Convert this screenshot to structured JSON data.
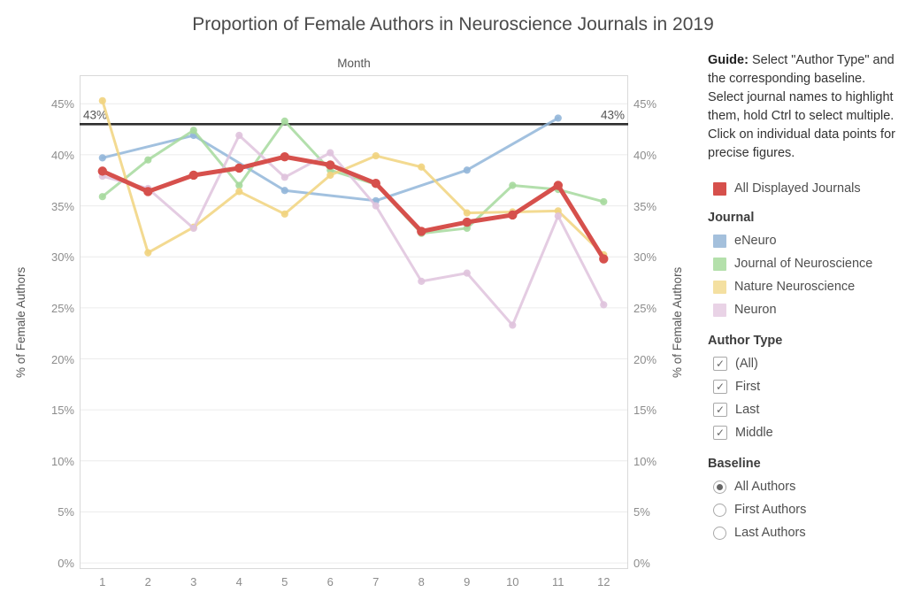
{
  "title": "Proportion of Female Authors in Neuroscience Journals in 2019",
  "chart_data": {
    "type": "line",
    "title": "Proportion of Female Authors in Neuroscience Journals in 2019",
    "x_axis_label": "Month",
    "y_axis_label": "% of Female Authors",
    "x": [
      1,
      2,
      3,
      4,
      5,
      6,
      7,
      8,
      9,
      10,
      11,
      12
    ],
    "y_ticks": [
      {
        "value": 0,
        "label": "0%"
      },
      {
        "value": 5,
        "label": "5%"
      },
      {
        "value": 10,
        "label": "10%"
      },
      {
        "value": 15,
        "label": "15%"
      },
      {
        "value": 20,
        "label": "20%"
      },
      {
        "value": 25,
        "label": "25%"
      },
      {
        "value": 30,
        "label": "30%"
      },
      {
        "value": 35,
        "label": "35%"
      },
      {
        "value": 40,
        "label": "40%"
      },
      {
        "value": 45,
        "label": "45%"
      }
    ],
    "ylim": [
      -0.6,
      47.8
    ],
    "grid": "horizontal",
    "reference_line": {
      "value": 43,
      "label": "43%",
      "color": "#2e2e2e"
    },
    "series": [
      {
        "name": "eNeuro",
        "color": "#92b6d9",
        "width": 3,
        "values": [
          39.7,
          null,
          41.9,
          null,
          36.5,
          null,
          35.5,
          null,
          38.5,
          null,
          43.6,
          null
        ]
      },
      {
        "name": "Journal of Neuroscience",
        "color": "#a6d99d",
        "width": 3,
        "values": [
          35.9,
          39.5,
          42.4,
          37.0,
          43.3,
          38.5,
          37.1,
          32.3,
          32.8,
          37.0,
          36.6,
          35.4
        ]
      },
      {
        "name": "Nature Neuroscience",
        "color": "#f1d37e",
        "width": 3,
        "values": [
          45.3,
          30.4,
          32.9,
          36.4,
          34.2,
          38.0,
          39.9,
          38.8,
          34.3,
          34.4,
          34.5,
          30.2
        ]
      },
      {
        "name": "Neuron",
        "color": "#dfc3dd",
        "width": 3,
        "values": [
          37.9,
          36.7,
          32.8,
          41.9,
          37.8,
          40.2,
          35.0,
          27.6,
          28.4,
          23.3,
          34.0,
          25.3
        ]
      },
      {
        "name": "All Displayed Journals",
        "color": "#d6504c",
        "width": 5,
        "values": [
          38.4,
          36.4,
          38.0,
          38.7,
          39.8,
          39.0,
          37.2,
          32.5,
          33.4,
          34.1,
          37.0,
          29.8
        ]
      }
    ],
    "legend_position": "right"
  },
  "guide": {
    "label": "Guide:",
    "text": "Select \"Author Type\" and the corresponding baseline. Select journal names to highlight them, hold Ctrl to select multiple. Click on individual data points for precise figures."
  },
  "legend_all": {
    "label": "All Displayed Journals",
    "color": "#d6504c"
  },
  "journal_legend": {
    "title": "Journal",
    "items": [
      {
        "label": "eNeuro",
        "color": "#a4c0dc"
      },
      {
        "label": "Journal of Neuroscience",
        "color": "#b4e0ab"
      },
      {
        "label": "Nature Neuroscience",
        "color": "#f4e0a1"
      },
      {
        "label": "Neuron",
        "color": "#e9d3e6"
      }
    ]
  },
  "author_type": {
    "title": "Author Type",
    "options": [
      {
        "label": "(All)",
        "checked": true
      },
      {
        "label": "First",
        "checked": true
      },
      {
        "label": "Last",
        "checked": true
      },
      {
        "label": "Middle",
        "checked": true
      }
    ]
  },
  "baseline": {
    "title": "Baseline",
    "options": [
      {
        "label": "All Authors",
        "selected": true
      },
      {
        "label": "First Authors",
        "selected": false
      },
      {
        "label": "Last Authors",
        "selected": false
      }
    ]
  },
  "icons": {
    "check": "✓"
  }
}
